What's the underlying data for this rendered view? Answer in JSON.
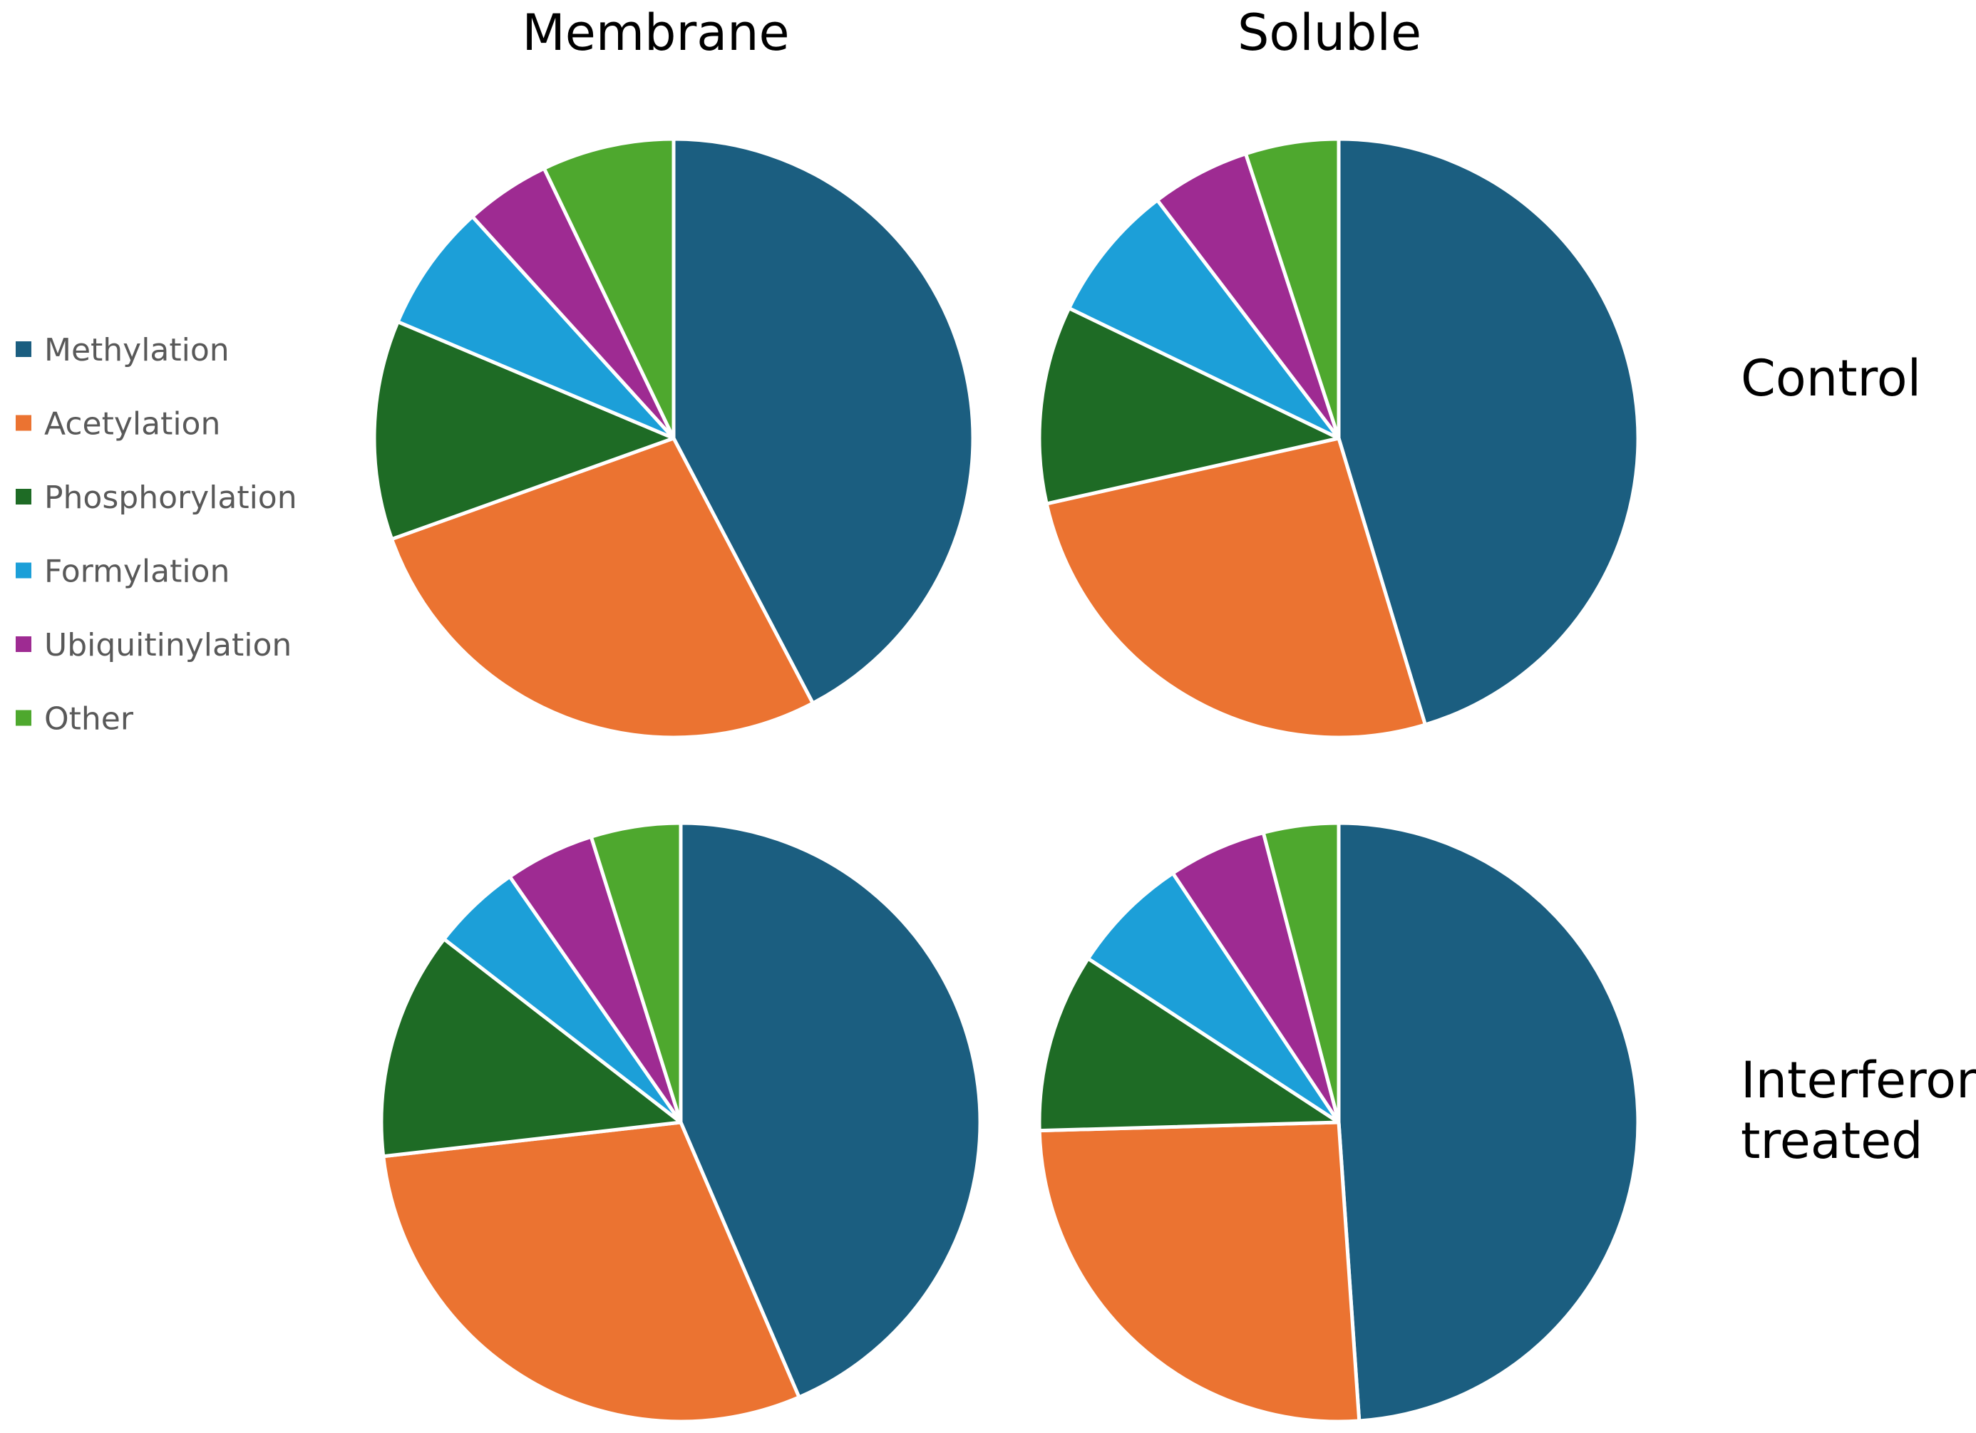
{
  "chart_data": {
    "type": "pie",
    "column_titles": [
      "Membrane",
      "Soluble"
    ],
    "row_titles": [
      {
        "lines": [
          "Control"
        ]
      },
      {
        "lines": [
          "Interferon",
          "treated"
        ]
      }
    ],
    "categories": [
      "Methylation",
      "Acetylation",
      "Phosphorylation",
      "Formylation",
      "Ubiquitinylation",
      "Other"
    ],
    "colors": [
      "#1b5e80",
      "#eb7331",
      "#1e6b25",
      "#1c9fd8",
      "#9e2b92",
      "#4ea82e"
    ],
    "legend_position": "left",
    "charts": [
      {
        "column": "Membrane",
        "row": "Control",
        "values": [
          40.4,
          26.0,
          11.3,
          6.6,
          4.4,
          6.8
        ]
      },
      {
        "column": "Soluble",
        "row": "Control",
        "values": [
          44.2,
          25.5,
          10.4,
          7.3,
          5.2,
          4.9
        ]
      },
      {
        "column": "Membrane",
        "row": "Interferon treated",
        "values": [
          41.4,
          28.2,
          11.7,
          4.6,
          4.6,
          4.6
        ]
      },
      {
        "column": "Soluble",
        "row": "Interferon treated",
        "values": [
          47.1,
          24.7,
          9.3,
          6.2,
          5.1,
          3.9
        ]
      }
    ]
  }
}
